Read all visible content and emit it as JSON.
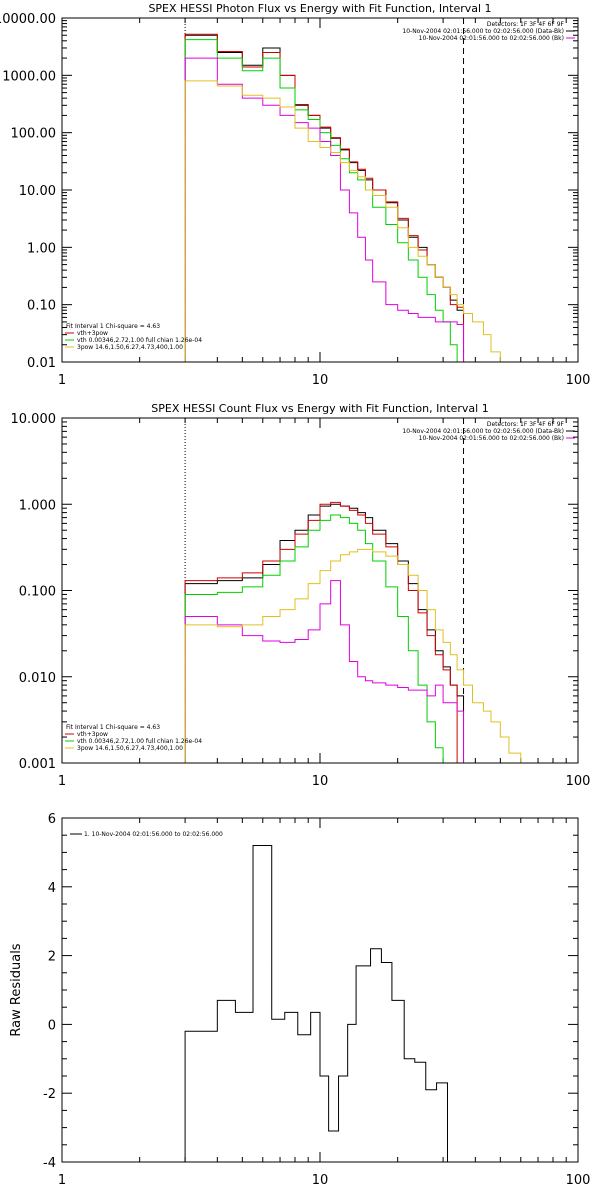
{
  "colors": {
    "background": "#ffffff",
    "axes": "#000000",
    "black": "#000000",
    "red": "#d00000",
    "green": "#00d000",
    "magenta": "#e000e0",
    "yellow": "#e0c020"
  },
  "chart_data": [
    {
      "type": "line",
      "title": "SPEX HESSI Photon Flux vs Energy with Fit Function, Interval 1",
      "xscale": "log",
      "yscale": "log",
      "xlim": [
        1,
        100
      ],
      "ylim": [
        0.01,
        10000
      ],
      "xtick_labels": [
        "1",
        "10",
        "100"
      ],
      "ytick_labels": [
        "10000.00",
        "1000.00",
        "100.00",
        "10.00",
        "1.00",
        "0.10",
        "0.01"
      ],
      "header_lines": [
        "Detectors: 1F 3F 4F 6F 9F",
        "10-Nov-2004 02:01:56.000 to 02:02:56.000 (Data-Bk)",
        "10-Nov-2004 02:01:56.000 to 02:02:56.000 (Bk)"
      ],
      "legend": [
        "Fit Interval  1    Chi-square = 4.63",
        "vth+3pow",
        "vth 0.00346,2.72,1.00  full chian 1.26e-04",
        "3pow 14.6,1.50,6.27,4.73,400,1.00"
      ],
      "vlines": [
        3.0,
        36.0
      ],
      "bin_edges": [
        3.0,
        4.0,
        5.0,
        6.0,
        7.0,
        8.0,
        9.0,
        10.0,
        11.0,
        12.0,
        13.0,
        14.0,
        15.0,
        16.0,
        18.0,
        20.0,
        22.0,
        24.0,
        26.0,
        28.0,
        30.0,
        32.0,
        34.0,
        36.0,
        39.0,
        43.0,
        46.0,
        50.0,
        54.0
      ],
      "series": [
        {
          "color": "black",
          "values": [
            5000,
            2500,
            1500,
            3000,
            1000,
            300,
            200,
            120,
            80,
            50,
            30,
            22,
            15,
            10,
            6,
            3,
            1.5,
            1,
            0.5,
            0.3,
            0.2,
            0.12,
            0.08,
            null,
            null,
            null,
            null,
            null
          ]
        },
        {
          "color": "red",
          "values": [
            5200,
            2600,
            1400,
            2500,
            1000,
            310,
            200,
            125,
            82,
            52,
            31,
            23,
            16,
            10,
            6.2,
            3.2,
            1.6,
            0.9,
            0.5,
            0.3,
            0.2,
            0.1,
            0.09,
            null,
            null,
            null,
            null,
            null
          ]
        },
        {
          "color": "green",
          "values": [
            4200,
            2000,
            1200,
            2000,
            600,
            250,
            170,
            100,
            60,
            35,
            20,
            15,
            10,
            5,
            2.5,
            1.2,
            0.6,
            0.3,
            0.15,
            0.08,
            0.05,
            0.02,
            0.01,
            null,
            null,
            null,
            null,
            null
          ]
        },
        {
          "color": "magenta",
          "values": [
            2000,
            700,
            400,
            300,
            200,
            150,
            120,
            70,
            40,
            10,
            4,
            1.5,
            0.6,
            0.25,
            0.1,
            0.08,
            0.07,
            0.06,
            0.06,
            0.05,
            0.05,
            0.05,
            0.045,
            null,
            null,
            null,
            null,
            null
          ]
        },
        {
          "color": "yellow",
          "values": [
            800,
            650,
            450,
            400,
            280,
            120,
            70,
            55,
            45,
            30,
            22,
            17,
            10,
            8,
            5,
            2.2,
            1,
            0.7,
            0.5,
            0.3,
            0.2,
            0.15,
            0.1,
            0.07,
            0.05,
            0.03,
            0.015,
            0.01
          ]
        }
      ]
    },
    {
      "type": "line",
      "title": "SPEX HESSI Count Flux vs Energy with Fit Function, Interval 1",
      "xscale": "log",
      "yscale": "log",
      "xlim": [
        1,
        100
      ],
      "ylim": [
        0.001,
        10
      ],
      "xtick_labels": [
        "1",
        "10",
        "100"
      ],
      "ytick_labels": [
        "10.000",
        "1.000",
        "0.100",
        "0.010",
        "0.001"
      ],
      "header_lines": [
        "Detectors: 1F 3F 4F 6F 9F",
        "10-Nov-2004 02:01:56.000 to 02:02:56.000 (Data-Bk)",
        "10-Nov-2004 02:01:56.000 to 02:02:56.000 (Bk)"
      ],
      "legend": [
        "Fit Interval  1    Chi-square = 4.63",
        "vth+3pow",
        "vth 0.00346,2.72,1.00  full chian 1.26e-04",
        "3pow 14.6,1.50,6.27,4.73,400,1.00"
      ],
      "vlines": [
        3.0,
        36.0
      ],
      "bin_edges": [
        3.0,
        4.0,
        5.0,
        6.0,
        7.0,
        8.0,
        9.0,
        10.0,
        11.0,
        12.0,
        13.0,
        14.0,
        15.0,
        16.0,
        18.0,
        20.0,
        22.0,
        24.0,
        26.0,
        28.0,
        30.0,
        32.0,
        34.0,
        36.0,
        39.0,
        43.0,
        46.0,
        50.0,
        54.0,
        60.0,
        66.0
      ],
      "series": [
        {
          "color": "black",
          "values": [
            0.12,
            0.13,
            0.14,
            0.2,
            0.38,
            0.5,
            0.75,
            0.95,
            1.0,
            0.95,
            0.9,
            0.8,
            0.7,
            0.5,
            0.35,
            0.22,
            0.12,
            0.06,
            0.035,
            0.02,
            0.013,
            0.008,
            0.006,
            null,
            null,
            null,
            null,
            null,
            null,
            null
          ]
        },
        {
          "color": "red",
          "values": [
            0.13,
            0.14,
            0.16,
            0.22,
            0.3,
            0.45,
            0.65,
            1.0,
            1.05,
            0.95,
            0.85,
            0.75,
            0.6,
            0.45,
            0.32,
            0.2,
            0.1,
            0.055,
            0.03,
            0.018,
            0.012,
            0.008,
            null,
            null,
            null,
            null,
            null,
            null,
            null,
            null
          ]
        },
        {
          "color": "green",
          "values": [
            0.09,
            0.095,
            0.11,
            0.15,
            0.22,
            0.32,
            0.5,
            0.65,
            0.75,
            0.7,
            0.6,
            0.5,
            0.35,
            0.22,
            0.11,
            0.05,
            0.02,
            0.008,
            0.003,
            0.0015,
            0.001,
            null,
            null,
            null,
            null,
            null,
            null,
            null,
            null,
            null
          ]
        },
        {
          "color": "magenta",
          "values": [
            0.05,
            0.04,
            0.03,
            0.026,
            0.025,
            0.027,
            0.035,
            0.07,
            0.13,
            0.04,
            0.015,
            0.01,
            0.009,
            0.0085,
            0.008,
            0.0075,
            0.007,
            0.007,
            0.006,
            0.008,
            0.005,
            0.005,
            0.004,
            null,
            null,
            null,
            null,
            null,
            null,
            null
          ]
        },
        {
          "color": "yellow",
          "values": [
            0.04,
            0.038,
            0.04,
            0.05,
            0.06,
            0.08,
            0.12,
            0.17,
            0.22,
            0.26,
            0.28,
            0.3,
            0.3,
            0.28,
            0.25,
            0.2,
            0.15,
            0.1,
            0.06,
            0.035,
            0.025,
            0.018,
            0.012,
            0.008,
            0.005,
            0.004,
            0.003,
            0.002,
            0.0013,
            0.001
          ]
        }
      ]
    },
    {
      "type": "line",
      "title": "",
      "xscale": "log",
      "yscale": "linear",
      "xlim": [
        1,
        100
      ],
      "ylim": [
        -4,
        6
      ],
      "xtick_labels": [
        "1",
        "10",
        "100"
      ],
      "ytick_labels": [
        "6",
        "4",
        "2",
        "0",
        "-2",
        "-4"
      ],
      "ylabel": "Raw Residuals",
      "legend": [
        "1. 10-Nov-2004 02:01:56.000 to 02:02:56.000"
      ],
      "bin_edges": [
        3.0,
        4.0,
        4.7,
        5.5,
        6.5,
        7.3,
        8.2,
        9.2,
        10.0,
        10.8,
        11.8,
        12.8,
        13.8,
        15.7,
        17.3,
        19.0,
        21.2,
        23.3,
        25.7,
        28.3,
        31.2,
        34.4,
        38.0
      ],
      "series": [
        {
          "color": "black",
          "values": [
            -0.2,
            0.7,
            0.35,
            5.2,
            0.15,
            0.35,
            -0.3,
            0.35,
            -1.5,
            -3.1,
            -1.5,
            0.0,
            1.7,
            2.2,
            1.8,
            0.7,
            -1.0,
            -1.1,
            -1.9,
            -1.7,
            -4.0,
            null
          ]
        }
      ]
    }
  ]
}
